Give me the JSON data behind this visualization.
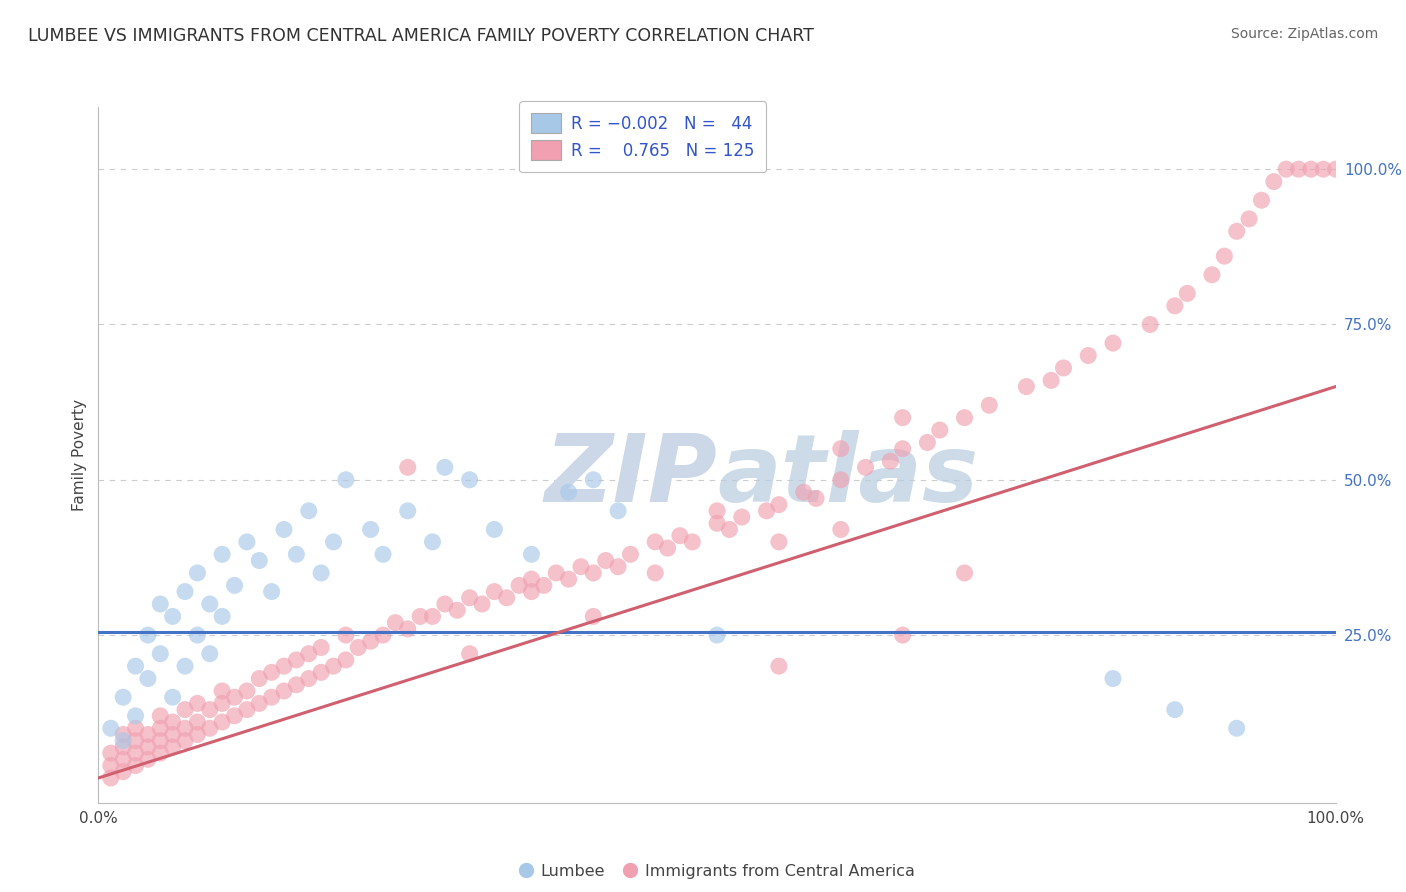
{
  "title": "LUMBEE VS IMMIGRANTS FROM CENTRAL AMERICA FAMILY POVERTY CORRELATION CHART",
  "source": "Source: ZipAtlas.com",
  "ylabel": "Family Poverty",
  "ytick_labels": [
    "100.0%",
    "75.0%",
    "50.0%",
    "25.0%"
  ],
  "ytick_positions": [
    1.0,
    0.75,
    0.5,
    0.25
  ],
  "xlim": [
    0.0,
    1.0
  ],
  "ylim": [
    -0.02,
    1.1
  ],
  "color_blue": "#a8c8e8",
  "color_pink": "#f0a0b0",
  "line_blue": "#4472C4",
  "line_pink": "#d06070",
  "watermark_color": "#ccd8e8",
  "background_color": "#ffffff",
  "grid_color": "#cccccc",
  "blue_line_y": 0.255,
  "pink_line_slope": 0.63,
  "pink_line_intercept": 0.02,
  "lumbee_x": [
    0.01,
    0.02,
    0.02,
    0.03,
    0.03,
    0.04,
    0.04,
    0.05,
    0.05,
    0.06,
    0.06,
    0.07,
    0.07,
    0.08,
    0.08,
    0.09,
    0.09,
    0.1,
    0.1,
    0.11,
    0.12,
    0.13,
    0.14,
    0.15,
    0.16,
    0.17,
    0.18,
    0.19,
    0.2,
    0.22,
    0.23,
    0.25,
    0.27,
    0.28,
    0.3,
    0.32,
    0.35,
    0.38,
    0.4,
    0.42,
    0.5,
    0.82,
    0.87,
    0.92
  ],
  "lumbee_y": [
    0.1,
    0.08,
    0.15,
    0.12,
    0.2,
    0.18,
    0.25,
    0.22,
    0.3,
    0.15,
    0.28,
    0.32,
    0.2,
    0.25,
    0.35,
    0.22,
    0.3,
    0.38,
    0.28,
    0.33,
    0.4,
    0.37,
    0.32,
    0.42,
    0.38,
    0.45,
    0.35,
    0.4,
    0.5,
    0.42,
    0.38,
    0.45,
    0.4,
    0.52,
    0.5,
    0.42,
    0.38,
    0.48,
    0.5,
    0.45,
    0.25,
    0.18,
    0.13,
    0.1
  ],
  "central_x": [
    0.01,
    0.01,
    0.01,
    0.02,
    0.02,
    0.02,
    0.02,
    0.03,
    0.03,
    0.03,
    0.03,
    0.04,
    0.04,
    0.04,
    0.05,
    0.05,
    0.05,
    0.05,
    0.06,
    0.06,
    0.06,
    0.07,
    0.07,
    0.07,
    0.08,
    0.08,
    0.08,
    0.09,
    0.09,
    0.1,
    0.1,
    0.1,
    0.11,
    0.11,
    0.12,
    0.12,
    0.13,
    0.13,
    0.14,
    0.14,
    0.15,
    0.15,
    0.16,
    0.16,
    0.17,
    0.17,
    0.18,
    0.18,
    0.19,
    0.2,
    0.2,
    0.21,
    0.22,
    0.23,
    0.24,
    0.25,
    0.26,
    0.27,
    0.28,
    0.29,
    0.3,
    0.31,
    0.32,
    0.33,
    0.34,
    0.35,
    0.36,
    0.37,
    0.38,
    0.39,
    0.4,
    0.41,
    0.42,
    0.43,
    0.45,
    0.46,
    0.47,
    0.48,
    0.5,
    0.51,
    0.52,
    0.54,
    0.55,
    0.57,
    0.58,
    0.6,
    0.62,
    0.64,
    0.65,
    0.67,
    0.68,
    0.7,
    0.72,
    0.75,
    0.77,
    0.78,
    0.8,
    0.82,
    0.85,
    0.87,
    0.88,
    0.9,
    0.91,
    0.92,
    0.93,
    0.94,
    0.95,
    0.96,
    0.97,
    0.98,
    0.99,
    1.0,
    0.25,
    0.3,
    0.35,
    0.4,
    0.45,
    0.5,
    0.55,
    0.6,
    0.65,
    0.7,
    0.55,
    0.6,
    0.65
  ],
  "central_y": [
    0.02,
    0.04,
    0.06,
    0.03,
    0.05,
    0.07,
    0.09,
    0.04,
    0.06,
    0.08,
    0.1,
    0.05,
    0.07,
    0.09,
    0.06,
    0.08,
    0.1,
    0.12,
    0.07,
    0.09,
    0.11,
    0.08,
    0.1,
    0.13,
    0.09,
    0.11,
    0.14,
    0.1,
    0.13,
    0.11,
    0.14,
    0.16,
    0.12,
    0.15,
    0.13,
    0.16,
    0.14,
    0.18,
    0.15,
    0.19,
    0.16,
    0.2,
    0.17,
    0.21,
    0.18,
    0.22,
    0.19,
    0.23,
    0.2,
    0.21,
    0.25,
    0.23,
    0.24,
    0.25,
    0.27,
    0.26,
    0.28,
    0.28,
    0.3,
    0.29,
    0.31,
    0.3,
    0.32,
    0.31,
    0.33,
    0.34,
    0.33,
    0.35,
    0.34,
    0.36,
    0.35,
    0.37,
    0.36,
    0.38,
    0.4,
    0.39,
    0.41,
    0.4,
    0.43,
    0.42,
    0.44,
    0.45,
    0.46,
    0.48,
    0.47,
    0.5,
    0.52,
    0.53,
    0.55,
    0.56,
    0.58,
    0.6,
    0.62,
    0.65,
    0.66,
    0.68,
    0.7,
    0.72,
    0.75,
    0.78,
    0.8,
    0.83,
    0.86,
    0.9,
    0.92,
    0.95,
    0.98,
    1.0,
    1.0,
    1.0,
    1.0,
    1.0,
    0.52,
    0.22,
    0.32,
    0.28,
    0.35,
    0.45,
    0.2,
    0.42,
    0.6,
    0.35,
    0.4,
    0.55,
    0.25
  ]
}
